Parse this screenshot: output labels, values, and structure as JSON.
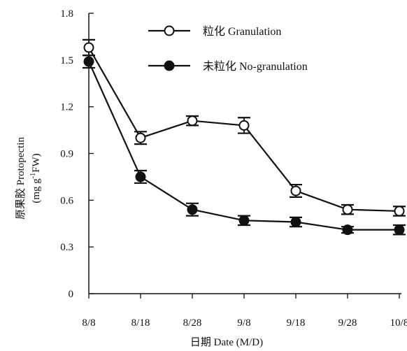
{
  "chart_data": {
    "type": "line",
    "xlabel": "日期 Date (M/D)",
    "ylabel_line1": "原果胶 Protopectin",
    "ylabel_line2_pre": "(mg g",
    "ylabel_line2_sup": "-1",
    "ylabel_line2_post": "FW)",
    "categories": [
      "8/8",
      "8/18",
      "8/28",
      "9/8",
      "9/18",
      "9/28",
      "10/8"
    ],
    "ylim": [
      0,
      1.8
    ],
    "yticks": [
      0,
      0.3,
      0.6,
      0.9,
      1.2,
      1.5,
      1.8
    ],
    "ytick_labels": [
      "0",
      "0.3",
      "0.6",
      "0.9",
      "1.2",
      "1.5",
      "1.8"
    ],
    "legend_position": "top-right",
    "series": [
      {
        "name": "粒化 Granulation",
        "marker": "open-circle",
        "values": [
          1.58,
          1.0,
          1.11,
          1.08,
          0.66,
          0.54,
          0.53
        ],
        "errors": [
          0.05,
          0.04,
          0.03,
          0.05,
          0.04,
          0.03,
          0.03
        ]
      },
      {
        "name": "未粒化 No-granulation",
        "marker": "filled-circle",
        "values": [
          1.49,
          0.75,
          0.54,
          0.47,
          0.46,
          0.41,
          0.41
        ],
        "errors": [
          0.04,
          0.04,
          0.04,
          0.03,
          0.03,
          0.02,
          0.03
        ]
      }
    ]
  }
}
